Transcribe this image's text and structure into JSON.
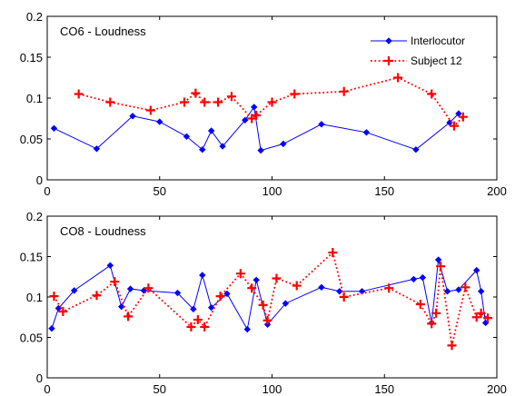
{
  "chart_data": [
    {
      "type": "line",
      "title": "CO6 - Loudness",
      "xlim": [
        0,
        200
      ],
      "ylim": [
        0,
        0.2
      ],
      "xticks": [
        "0",
        "50",
        "100",
        "150",
        "200"
      ],
      "yticks": [
        "0",
        "0.05",
        "0.1",
        "0.15",
        "0.2"
      ],
      "grid": false,
      "legend": "top-right",
      "series": [
        {
          "name": "Interlocutor",
          "color": "#0000ff",
          "style": "solid",
          "marker": "diamond",
          "points": [
            [
              3,
              0.063
            ],
            [
              22,
              0.038
            ],
            [
              38,
              0.078
            ],
            [
              50,
              0.071
            ],
            [
              62,
              0.053
            ],
            [
              69,
              0.037
            ],
            [
              73,
              0.06
            ],
            [
              78,
              0.041
            ],
            [
              88,
              0.073
            ],
            [
              92,
              0.089
            ],
            [
              95,
              0.036
            ],
            [
              105,
              0.044
            ],
            [
              122,
              0.068
            ],
            [
              142,
              0.058
            ],
            [
              164,
              0.037
            ],
            [
              179,
              0.07
            ],
            [
              183,
              0.081
            ]
          ]
        },
        {
          "name": "Subject 12",
          "color": "#ff0000",
          "style": "dotted",
          "marker": "plus",
          "points": [
            [
              14,
              0.105
            ],
            [
              28,
              0.095
            ],
            [
              46,
              0.085
            ],
            [
              61,
              0.095
            ],
            [
              66,
              0.106
            ],
            [
              70,
              0.095
            ],
            [
              76,
              0.095
            ],
            [
              82,
              0.102
            ],
            [
              91,
              0.075
            ],
            [
              93,
              0.079
            ],
            [
              100,
              0.095
            ],
            [
              110,
              0.105
            ],
            [
              132,
              0.108
            ],
            [
              156,
              0.125
            ],
            [
              171,
              0.105
            ],
            [
              181,
              0.066
            ],
            [
              185,
              0.077
            ]
          ]
        }
      ]
    },
    {
      "type": "line",
      "title": "CO8 - Loudness",
      "xlim": [
        0,
        200
      ],
      "ylim": [
        0,
        0.2
      ],
      "xticks": [
        "0",
        "50",
        "100",
        "150",
        "200"
      ],
      "yticks": [
        "0",
        "0.05",
        "0.1",
        "0.15",
        "0.2"
      ],
      "grid": false,
      "series": [
        {
          "color": "#0000ff",
          "style": "solid",
          "marker": "diamond",
          "points": [
            [
              2,
              0.061
            ],
            [
              5,
              0.086
            ],
            [
              12,
              0.108
            ],
            [
              28,
              0.139
            ],
            [
              33,
              0.088
            ],
            [
              37,
              0.11
            ],
            [
              43,
              0.108
            ],
            [
              58,
              0.105
            ],
            [
              65,
              0.085
            ],
            [
              69,
              0.127
            ],
            [
              73,
              0.087
            ],
            [
              80,
              0.104
            ],
            [
              89,
              0.06
            ],
            [
              93,
              0.121
            ],
            [
              98,
              0.066
            ],
            [
              106,
              0.092
            ],
            [
              122,
              0.112
            ],
            [
              130,
              0.107
            ],
            [
              140,
              0.107
            ],
            [
              163,
              0.122
            ],
            [
              167,
              0.124
            ],
            [
              171,
              0.068
            ],
            [
              174,
              0.146
            ],
            [
              178,
              0.107
            ],
            [
              183,
              0.109
            ],
            [
              191,
              0.133
            ],
            [
              193,
              0.107
            ],
            [
              195,
              0.068
            ]
          ]
        },
        {
          "color": "#ff0000",
          "style": "dotted",
          "marker": "plus",
          "points": [
            [
              3,
              0.101
            ],
            [
              7,
              0.082
            ],
            [
              22,
              0.102
            ],
            [
              30,
              0.119
            ],
            [
              36,
              0.076
            ],
            [
              45,
              0.111
            ],
            [
              64,
              0.063
            ],
            [
              67,
              0.072
            ],
            [
              70,
              0.063
            ],
            [
              77,
              0.101
            ],
            [
              86,
              0.129
            ],
            [
              91,
              0.111
            ],
            [
              96,
              0.09
            ],
            [
              98,
              0.071
            ],
            [
              102,
              0.123
            ],
            [
              111,
              0.114
            ],
            [
              127,
              0.155
            ],
            [
              132,
              0.1
            ],
            [
              152,
              0.111
            ],
            [
              166,
              0.091
            ],
            [
              171,
              0.067
            ],
            [
              173,
              0.08
            ],
            [
              175,
              0.138
            ],
            [
              180,
              0.04
            ],
            [
              186,
              0.112
            ],
            [
              191,
              0.075
            ],
            [
              193,
              0.08
            ],
            [
              196,
              0.074
            ]
          ]
        }
      ]
    }
  ]
}
